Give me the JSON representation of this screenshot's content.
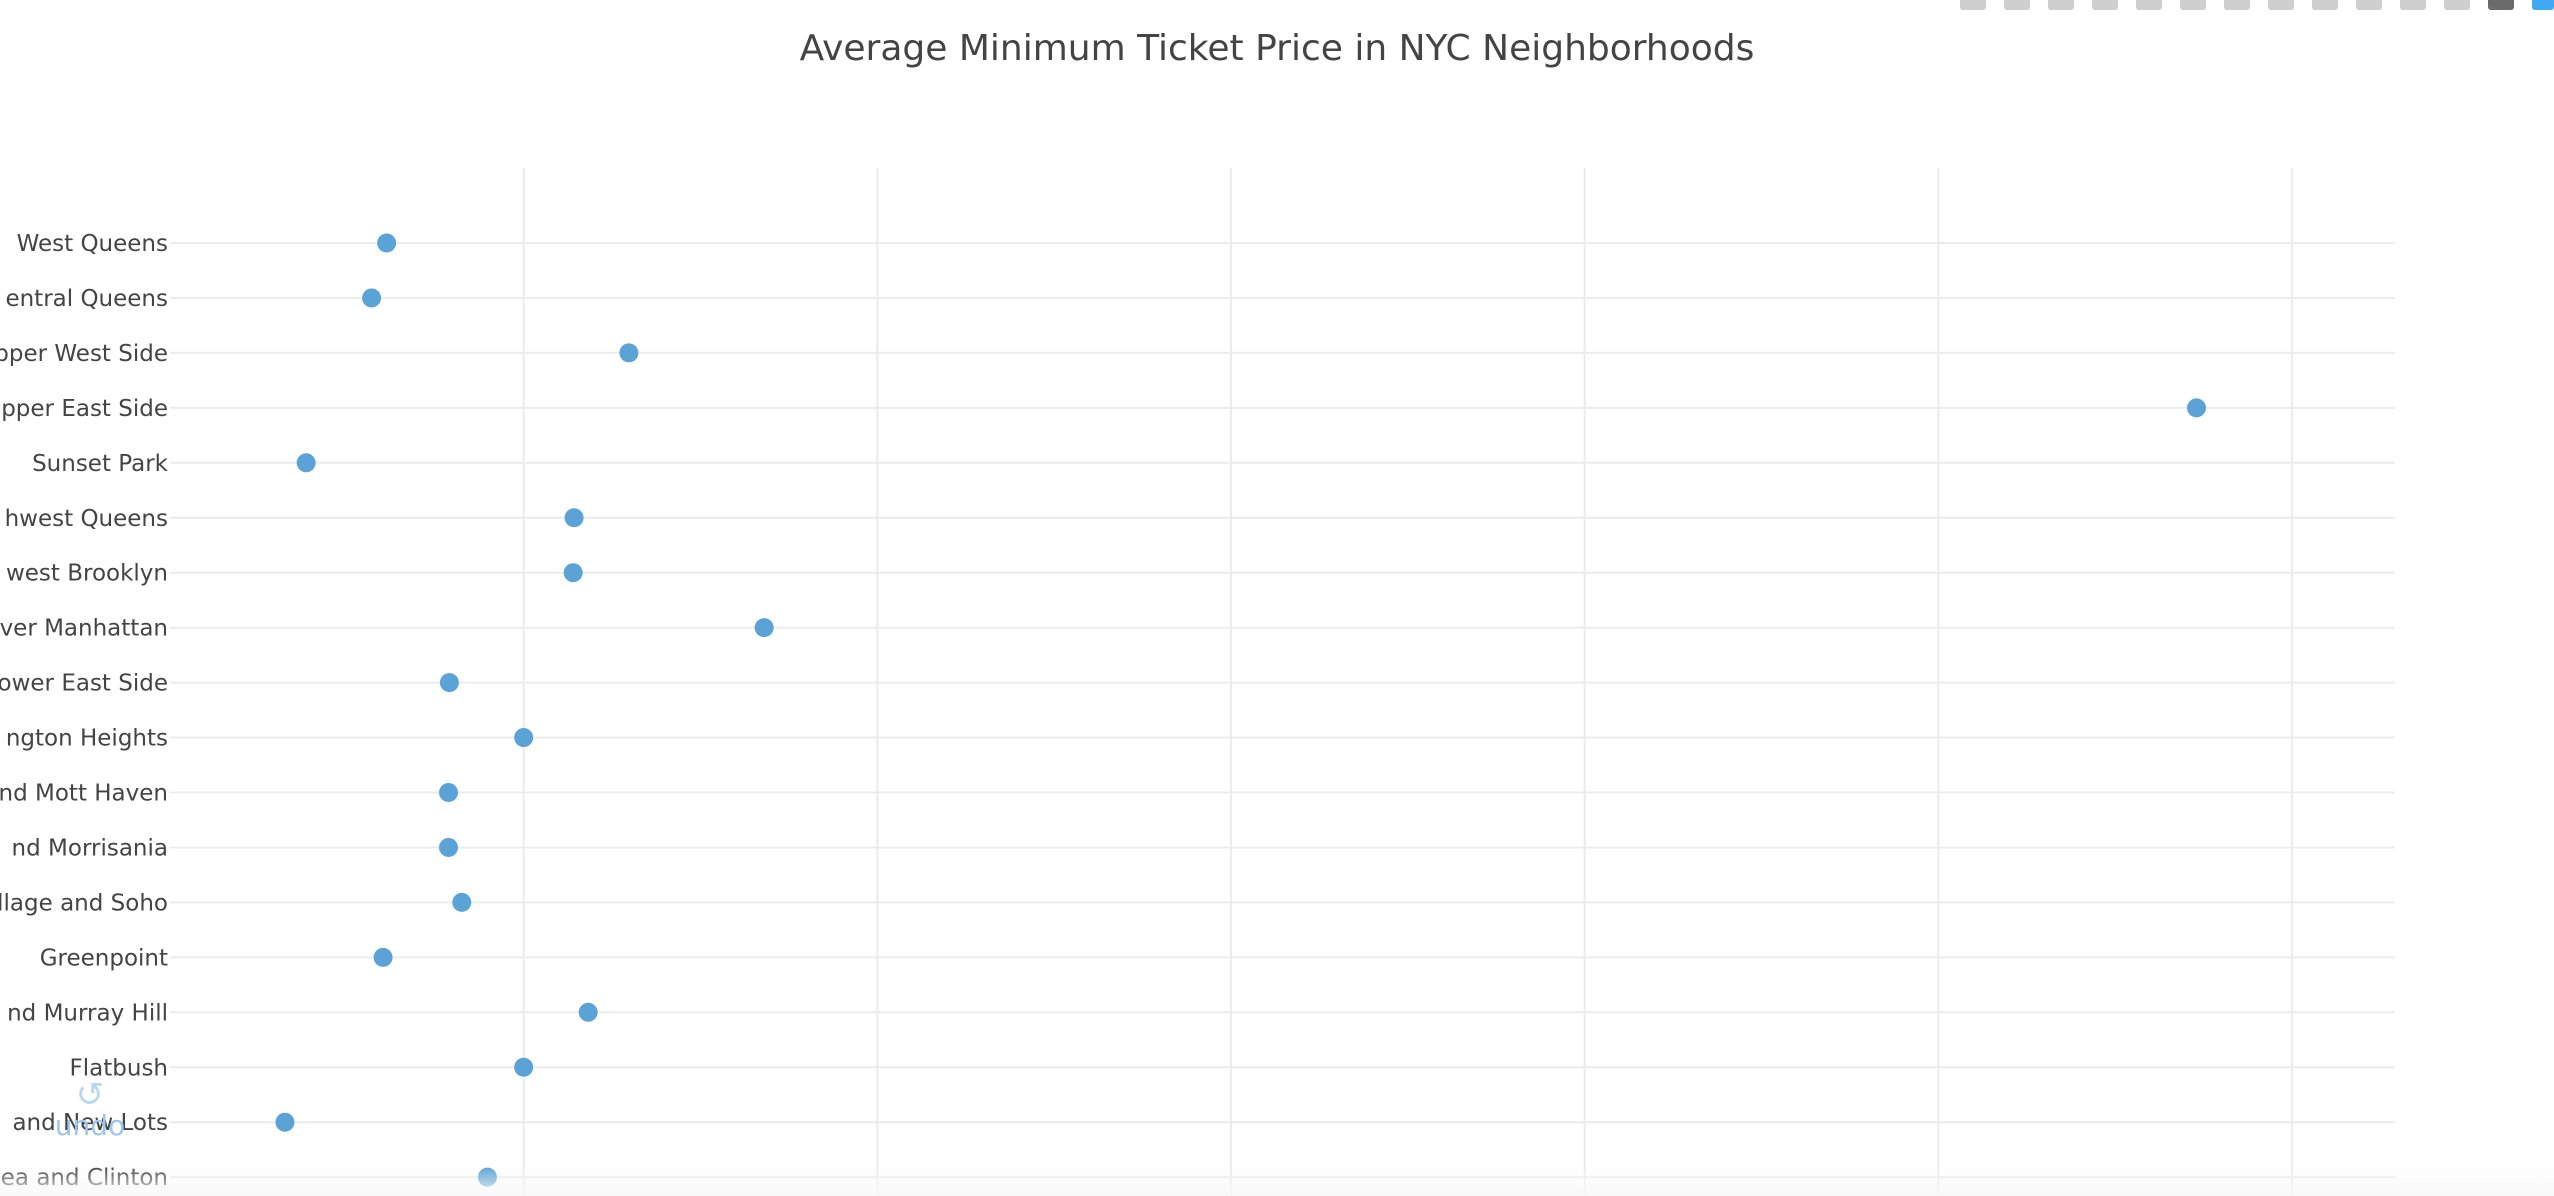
{
  "colors": {
    "marker": "#5ba3d6",
    "grid": "#ececec",
    "text": "#444444",
    "modebar_brand": "#3fa9f5"
  },
  "modebar": {
    "icons": [
      "camera-icon",
      "save-icon",
      "zoom-icon",
      "pan-icon",
      "lasso-select-icon",
      "comment-icon",
      "zoom-in-icon",
      "zoom-out-icon",
      "autoscale-icon",
      "reset-axes-icon",
      "spike-lines-icon",
      "hover-closest-icon",
      "hover-compare-icon",
      "plotly-logo-icon"
    ]
  },
  "undo": {
    "label": "undo"
  },
  "chart_data": {
    "type": "scatter",
    "title": "Average Minimum Ticket Price in NYC Neighborhoods",
    "xlabel": "",
    "ylabel": "",
    "xlim": [
      0,
      260
    ],
    "x_gridlines": [
      40,
      80,
      120,
      160,
      200,
      240
    ],
    "grid": true,
    "legend": "none",
    "categories": [
      "West Queens",
      "entral Queens",
      "pper West Side",
      "pper East Side",
      "Sunset Park",
      "hwest Queens",
      "west Brooklyn",
      "ver Manhattan",
      "ower East Side",
      "ngton Heights",
      "nd Mott Haven",
      "nd Morrisania",
      "llage and Soho",
      "Greenpoint",
      "nd Murray Hill",
      "Flatbush",
      "and New Lots",
      "ea and Clinton"
    ],
    "values": [
      24.5,
      22.8,
      51.9,
      229.2,
      15.4,
      45.7,
      45.6,
      67.2,
      31.6,
      40.0,
      31.5,
      31.5,
      33.0,
      24.1,
      47.3,
      40.0,
      13.0,
      35.9
    ]
  }
}
